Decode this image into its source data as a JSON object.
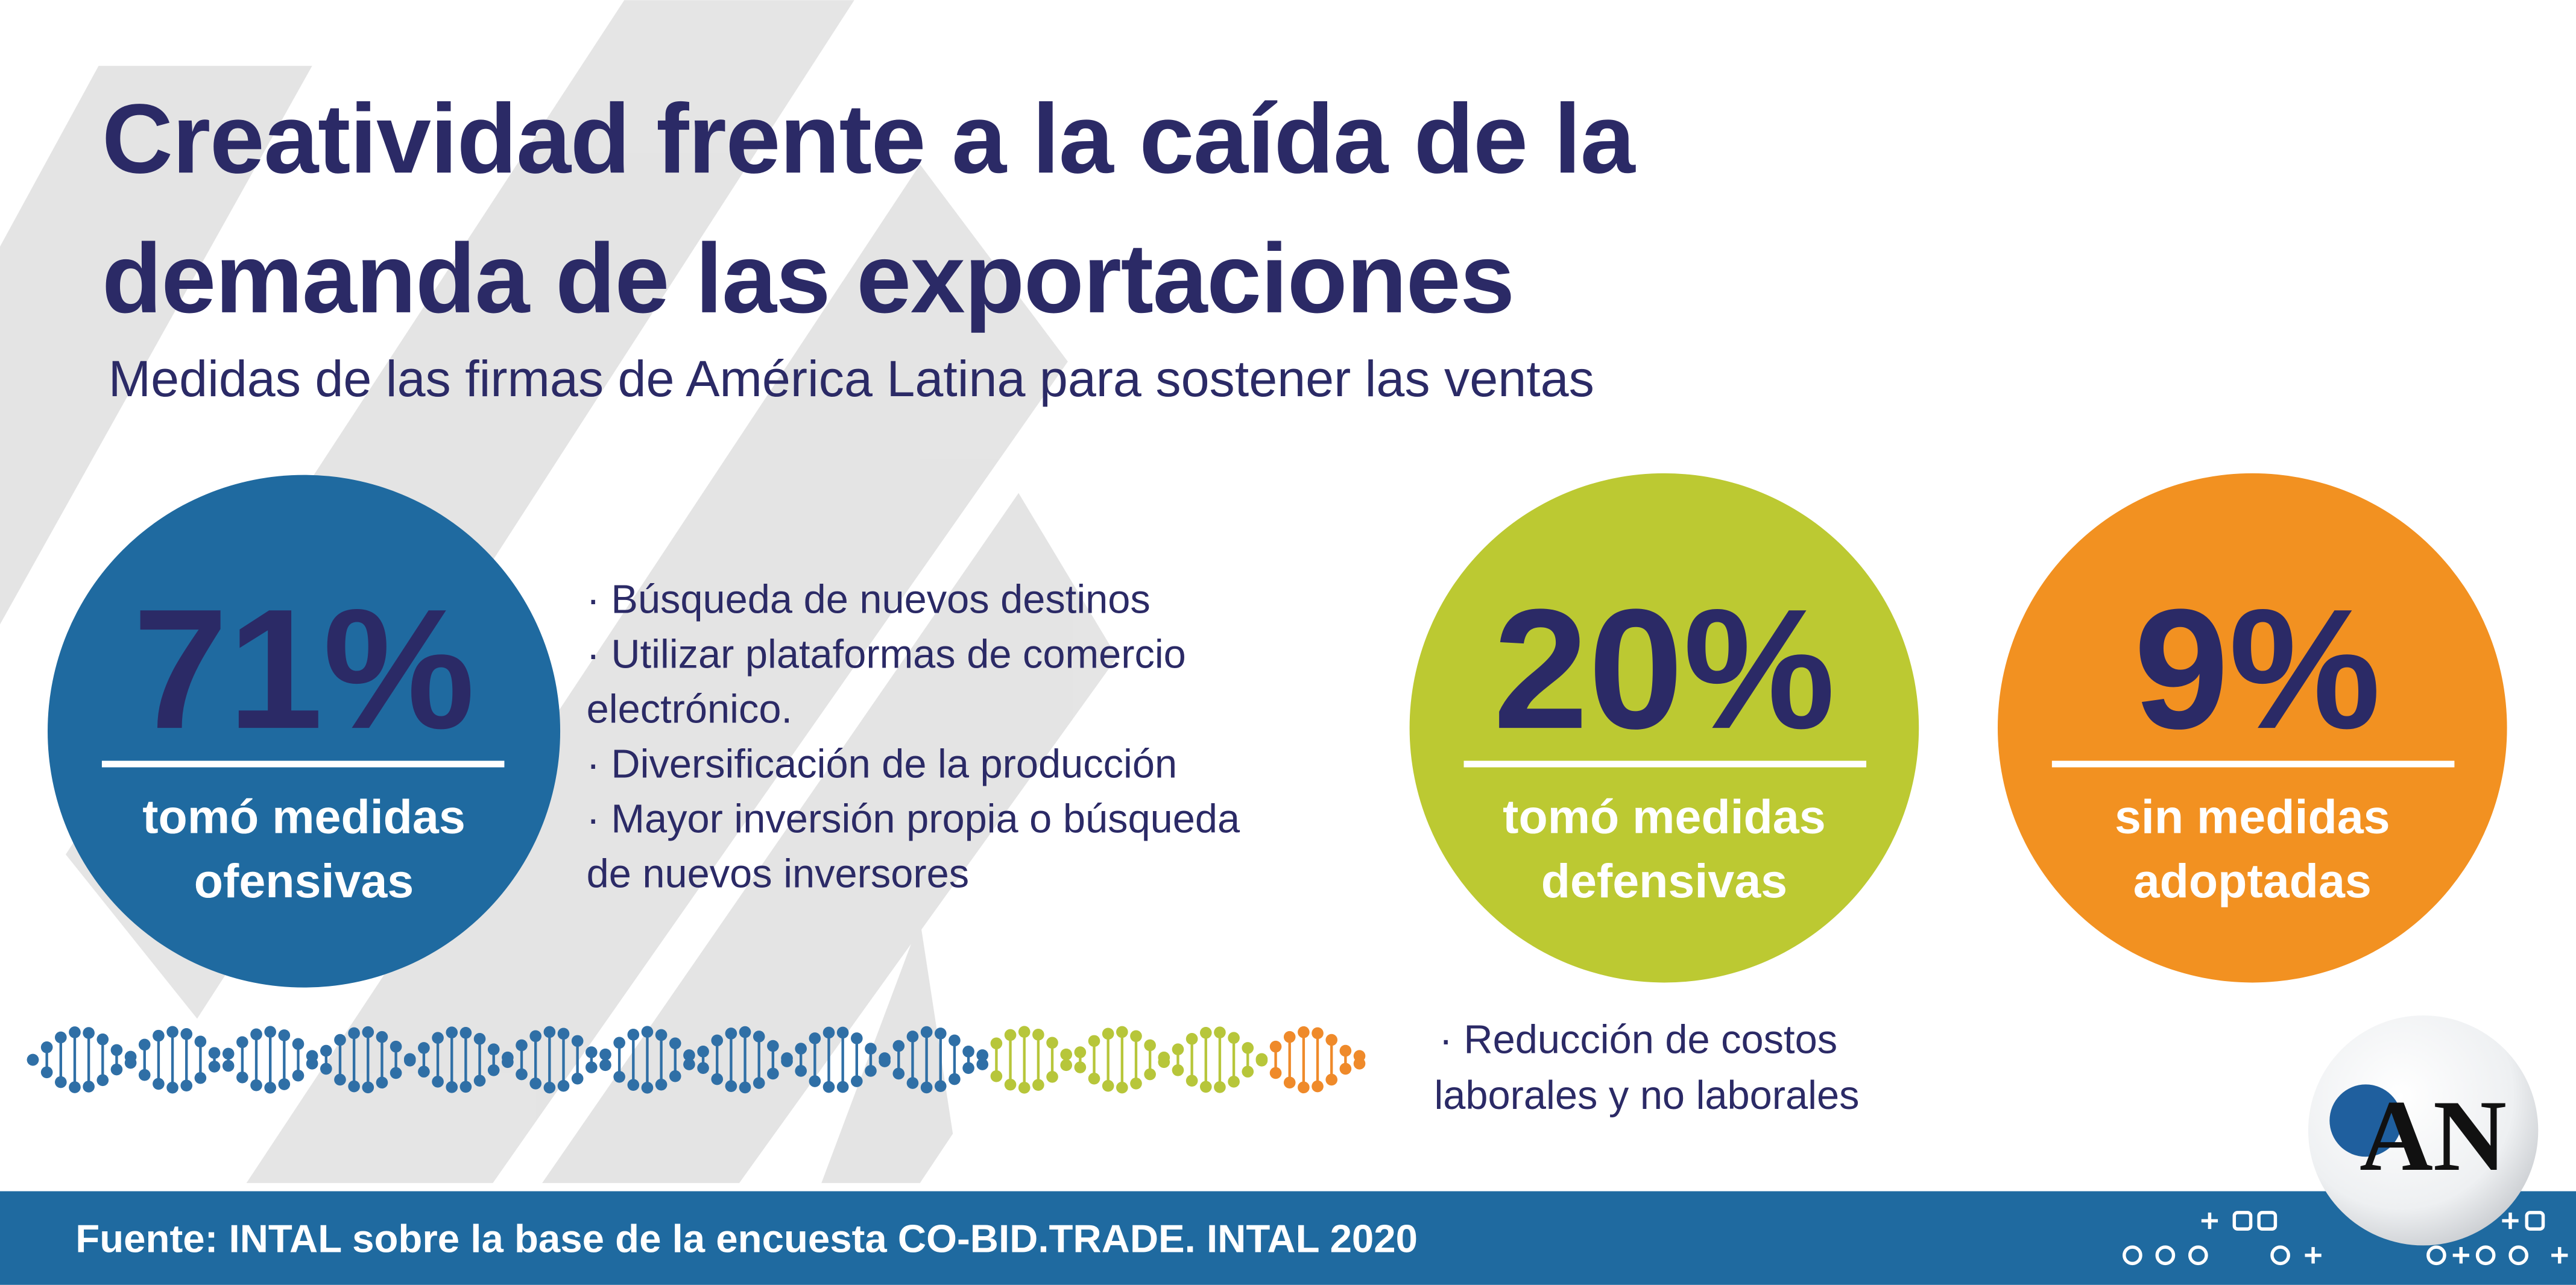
{
  "header": {
    "title_lines": [
      "Creatividad frente a la caída de la",
      "demanda de las exportaciones"
    ],
    "subtitle": "Medidas de las firmas de América Latina para sostener las  ventas"
  },
  "stats": [
    {
      "value": "71%",
      "label_lines": [
        "tomó medidas",
        "ofensivas"
      ]
    },
    {
      "value": "20%",
      "label_lines": [
        "tomó medidas",
        "defensivas"
      ]
    },
    {
      "value": "9%",
      "label_lines": [
        "sin medidas",
        "adoptadas"
      ]
    }
  ],
  "offensive_measures": [
    "· Búsqueda de nuevos destinos",
    "· Utilizar plataformas de comercio",
    "electrónico.",
    "· Diversificación de la producción",
    "· Mayor inversión propia o búsqueda",
    "de nuevos inversores"
  ],
  "defensive_measures": [
    "· Reducción de costos",
    "laborales y no laborales"
  ],
  "footer": {
    "source": "Fuente:  INTAL sobre la base de la encuesta CO-BID.TRADE. INTAL 2020"
  },
  "logo": {
    "text": "AN"
  }
}
